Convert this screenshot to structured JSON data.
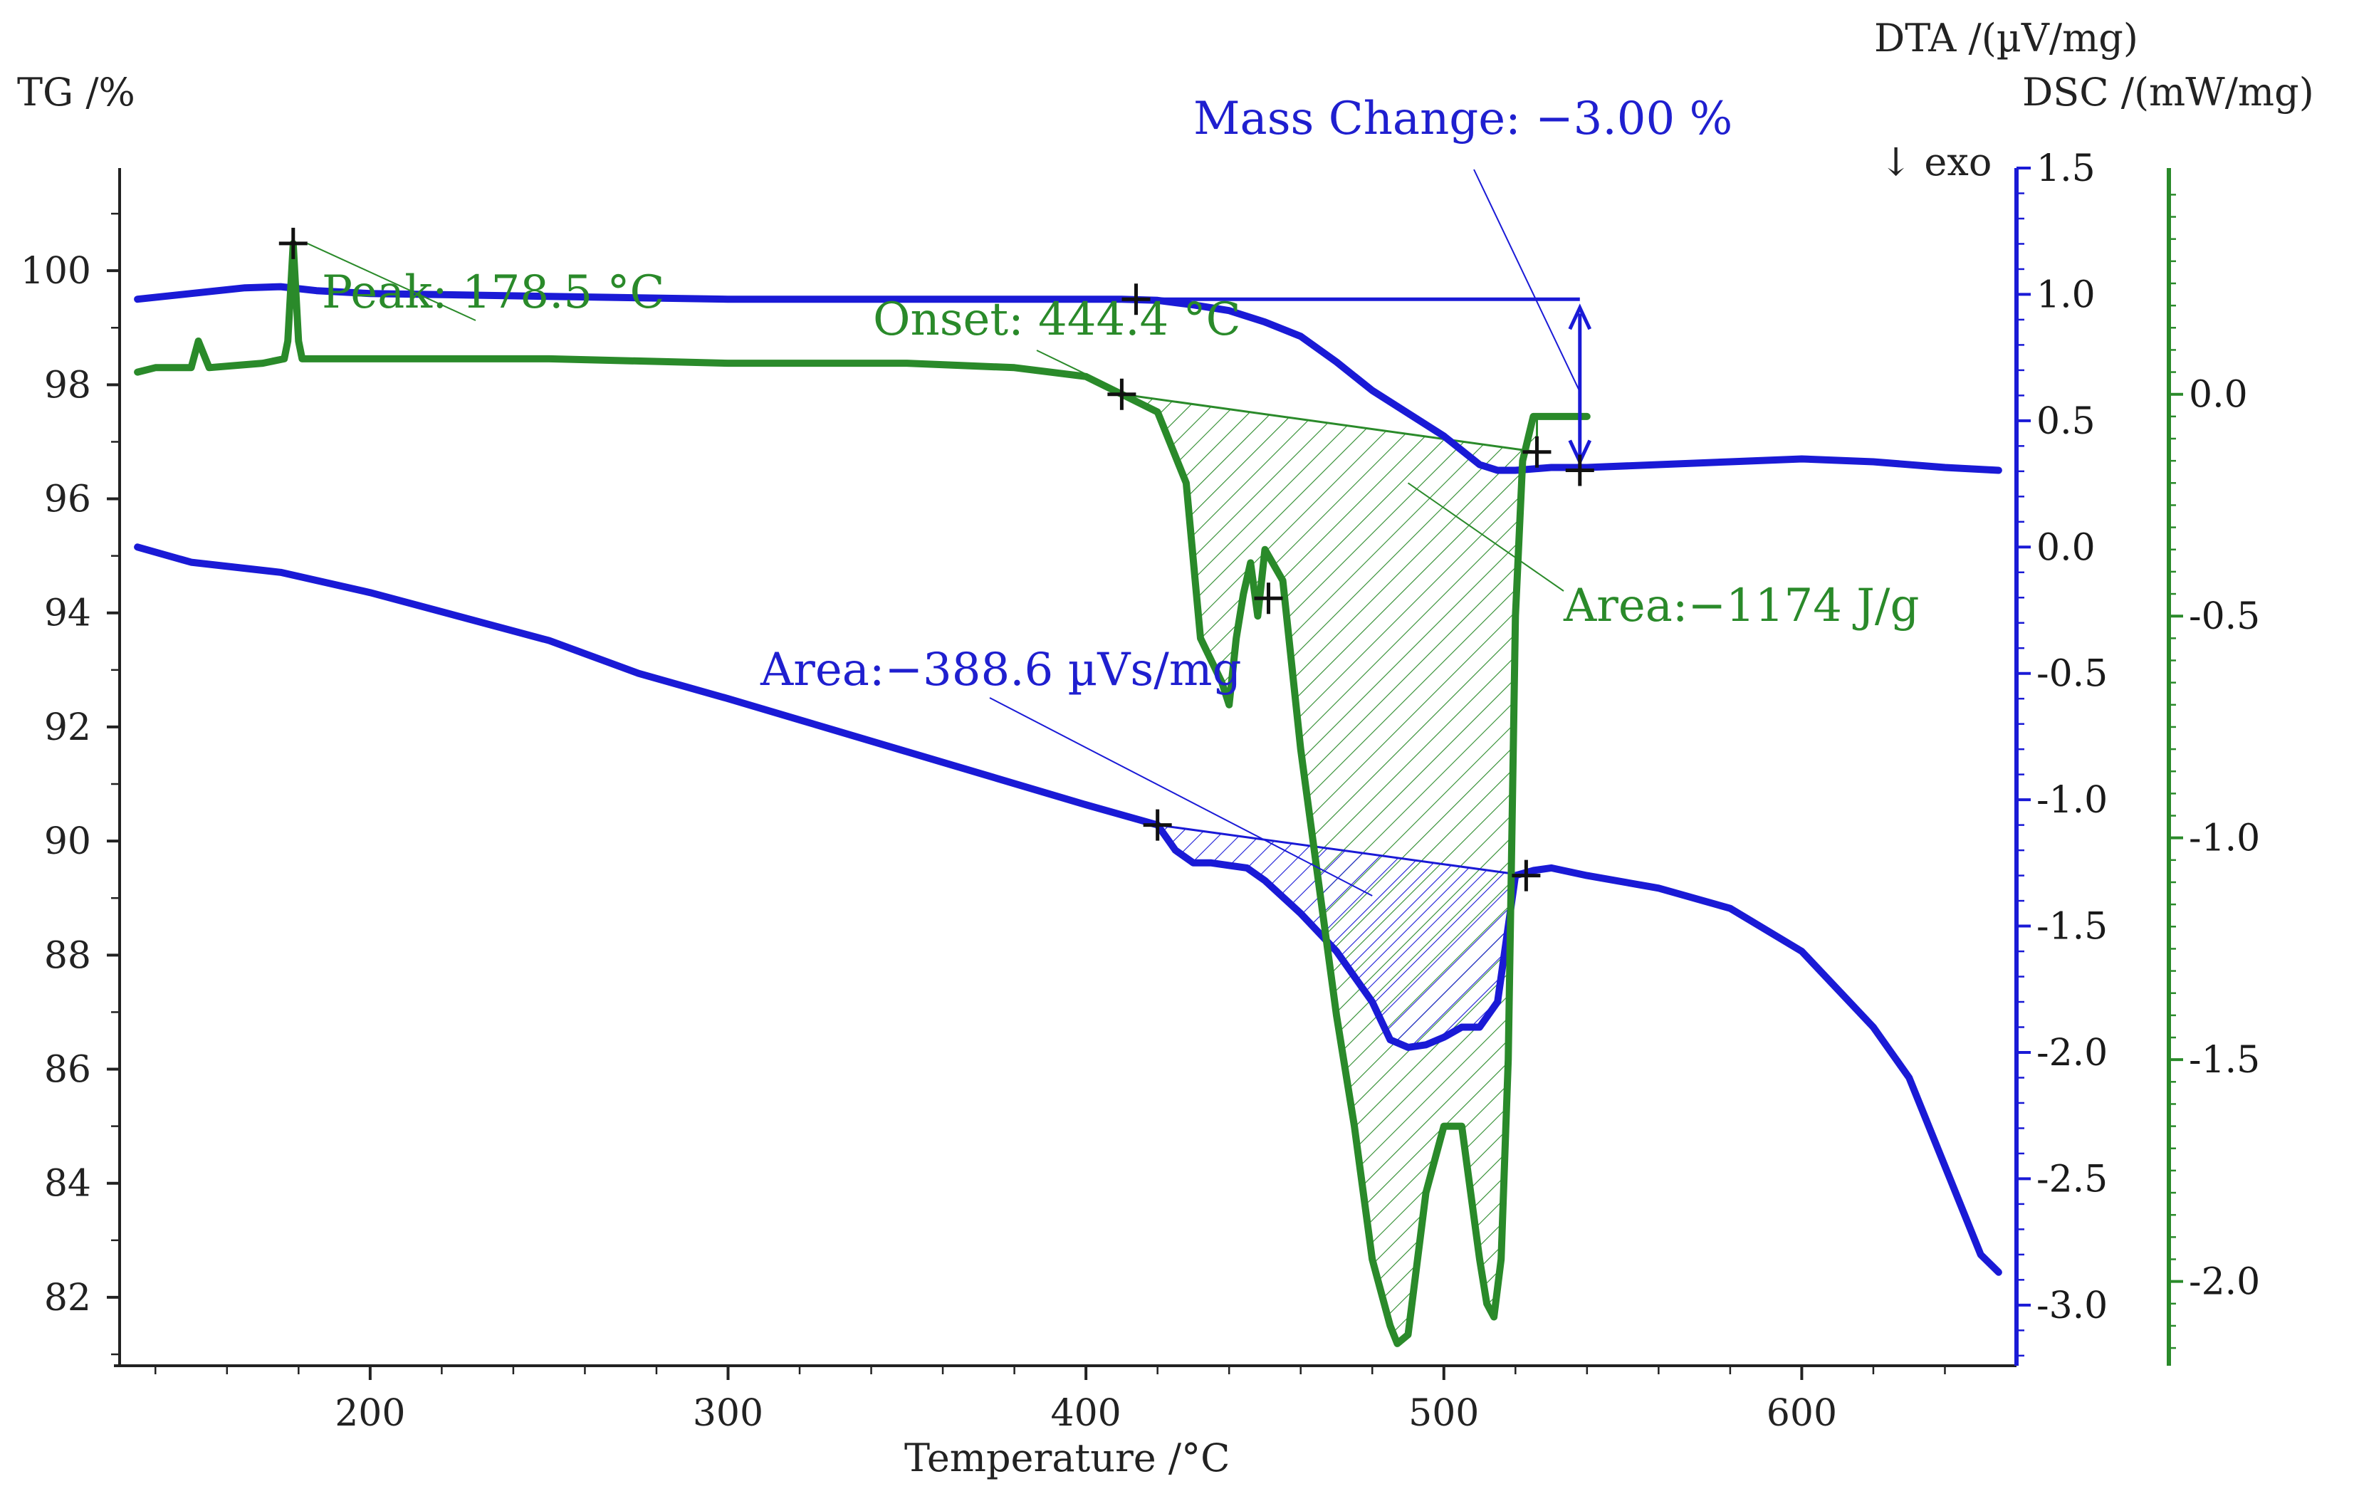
{
  "colors": {
    "tg": "#1a1ad6",
    "dta": "#1a1ad6",
    "dsc": "#2a8a2a",
    "axis": "#222222",
    "blue_axis": "#1a1ad6",
    "green_axis": "#2a8a2a"
  },
  "chart_data": {
    "type": "line",
    "title": "",
    "xlabel": "Temperature /°C",
    "xlim": [
      130,
      660
    ],
    "x_ticks": [
      "200",
      "300",
      "400",
      "500",
      "600"
    ],
    "axes": {
      "tg": {
        "label": "TG /%",
        "range": [
          80.8,
          101.8
        ],
        "ticks": [
          "100",
          "98",
          "96",
          "94",
          "92",
          "90",
          "88",
          "86",
          "84",
          "82"
        ]
      },
      "dta": {
        "label": "DTA /(µV/mg)",
        "range": [
          -3.24,
          1.5
        ],
        "ticks": [
          "1.5",
          "1.0",
          "0.5",
          "0.0",
          "-0.5",
          "-1.0",
          "-1.5",
          "-2.0",
          "-2.5",
          "-3.0"
        ]
      },
      "dsc": {
        "label": "DSC /(mW/mg)",
        "range": [
          -2.19,
          0.51
        ],
        "ticks": [
          "0.0",
          "-0.5",
          "-1.0",
          "-1.5",
          "-2.0"
        ]
      },
      "exo_marker": "↓ exo"
    },
    "series": [
      {
        "name": "TG",
        "axis": "tg",
        "x": [
          135,
          150,
          165,
          175,
          185,
          200,
          250,
          300,
          350,
          400,
          410,
          420,
          430,
          440,
          450,
          460,
          470,
          480,
          490,
          500,
          510,
          515,
          520,
          530,
          540,
          560,
          580,
          600,
          620,
          640,
          655
        ],
        "y": [
          99.5,
          99.6,
          99.7,
          99.72,
          99.65,
          99.6,
          99.55,
          99.5,
          99.5,
          99.5,
          99.5,
          99.48,
          99.4,
          99.3,
          99.1,
          98.85,
          98.4,
          97.9,
          97.5,
          97.1,
          96.6,
          96.5,
          96.5,
          96.55,
          96.55,
          96.6,
          96.65,
          96.7,
          96.65,
          96.55,
          96.5
        ]
      },
      {
        "name": "DTA",
        "axis": "dta",
        "x": [
          135,
          150,
          175,
          200,
          250,
          275,
          300,
          350,
          400,
          420,
          425,
          430,
          435,
          440,
          445,
          450,
          460,
          470,
          480,
          485,
          490,
          495,
          500,
          505,
          510,
          515,
          520,
          525,
          530,
          540,
          560,
          580,
          600,
          610,
          620,
          630,
          640,
          650,
          655
        ],
        "y": [
          0.0,
          -0.06,
          -0.1,
          -0.18,
          -0.37,
          -0.5,
          -0.6,
          -0.81,
          -1.02,
          -1.1,
          -1.2,
          -1.25,
          -1.25,
          -1.26,
          -1.27,
          -1.32,
          -1.45,
          -1.6,
          -1.8,
          -1.95,
          -1.98,
          -1.97,
          -1.94,
          -1.9,
          -1.9,
          -1.8,
          -1.3,
          -1.28,
          -1.27,
          -1.3,
          -1.35,
          -1.43,
          -1.6,
          -1.75,
          -1.9,
          -2.1,
          -2.45,
          -2.8,
          -2.87
        ]
      },
      {
        "name": "DSC",
        "axis": "dsc",
        "x": [
          135,
          140,
          150,
          152,
          155,
          170,
          176,
          177,
          178.5,
          180,
          181,
          190,
          200,
          250,
          300,
          350,
          380,
          400,
          410,
          420,
          428,
          432,
          438,
          440,
          442,
          444,
          446,
          448,
          450,
          455,
          460,
          465,
          470,
          475,
          480,
          485,
          487,
          490,
          495,
          500,
          505,
          510,
          512,
          514,
          516,
          518,
          520,
          522,
          525,
          530,
          540
        ],
        "y": [
          0.05,
          0.06,
          0.06,
          0.12,
          0.06,
          0.07,
          0.08,
          0.12,
          0.34,
          0.12,
          0.08,
          0.08,
          0.08,
          0.08,
          0.07,
          0.07,
          0.06,
          0.04,
          0.0,
          -0.04,
          -0.2,
          -0.55,
          -0.65,
          -0.7,
          -0.55,
          -0.45,
          -0.38,
          -0.5,
          -0.35,
          -0.42,
          -0.8,
          -1.1,
          -1.4,
          -1.65,
          -1.95,
          -2.1,
          -2.14,
          -2.12,
          -1.8,
          -1.65,
          -1.65,
          -1.95,
          -2.05,
          -2.08,
          -1.95,
          -1.5,
          -0.5,
          -0.15,
          -0.05,
          -0.05,
          -0.05
        ]
      }
    ],
    "annotations": [
      {
        "id": "mass",
        "text": "Mass Change:  −3.00 %",
        "series": "TG",
        "from": [
          414,
          99.5
        ],
        "to": [
          538,
          96.5
        ]
      },
      {
        "id": "peak",
        "text": "Peak: 178.5 °C",
        "series": "DSC",
        "point": [
          178.5,
          0.34
        ]
      },
      {
        "id": "onset",
        "text": "Onset: 444.4 °C",
        "series": "DSC",
        "point": [
          410,
          0.0
        ]
      },
      {
        "id": "area_dsc",
        "text": "Area:−1174 J/g",
        "series": "DSC",
        "baseline": [
          [
            410,
            0.0
          ],
          [
            526,
            -0.13
          ]
        ],
        "cross_mark": [
          451,
          -0.46
        ]
      },
      {
        "id": "area_dta",
        "text": "Area:−388.6 µVs/mg",
        "series": "DTA",
        "baseline": [
          [
            420,
            -1.1
          ],
          [
            523,
            -1.3
          ]
        ]
      }
    ]
  }
}
